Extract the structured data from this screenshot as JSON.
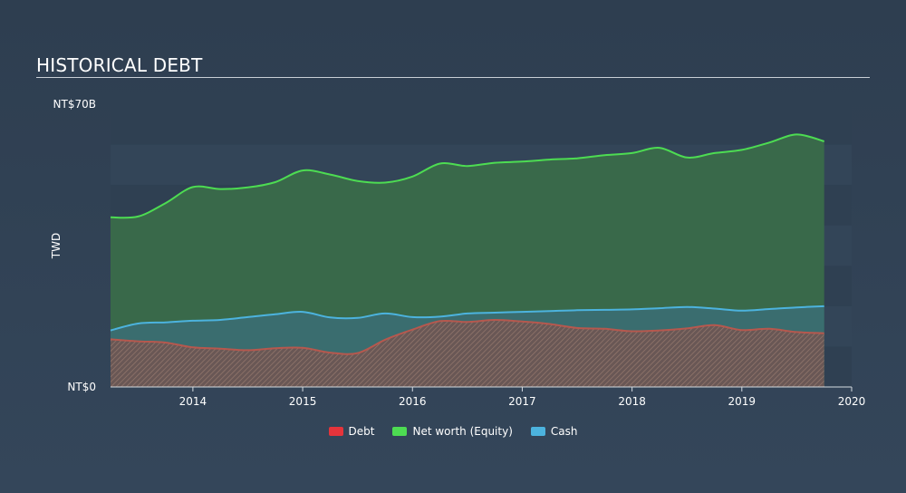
{
  "title": "HISTORICAL DEBT",
  "colors": {
    "debt": "#e5343b",
    "equity": "#4ddc52",
    "cash": "#4cb3de",
    "equity_fill": "#3a6b4a",
    "cash_fill": "#3b6e76"
  },
  "legend": [
    {
      "key": "debt",
      "label": "Debt",
      "color": "#e5343b"
    },
    {
      "key": "equity",
      "label": "Net worth (Equity)",
      "color": "#4ddc52"
    },
    {
      "key": "cash",
      "label": "Cash",
      "color": "#4cb3de"
    }
  ],
  "chart_data": {
    "type": "area",
    "title": "HISTORICAL DEBT",
    "ylabel": "TWD",
    "xlabel": "",
    "ylim": [
      0,
      70
    ],
    "xlim": [
      2013.25,
      2020.0
    ],
    "y_tick_labels": [
      {
        "value": 70,
        "label": "NT$70B"
      },
      {
        "value": 0,
        "label": "NT$0"
      }
    ],
    "x_ticks": [
      2014,
      2015,
      2016,
      2017,
      2018,
      2019,
      2020
    ],
    "grid": true,
    "legend_position": "bottom-center",
    "series": [
      {
        "name": "Net worth (Equity)",
        "key": "equity",
        "x": [
          2013.25,
          2013.5,
          2013.75,
          2014.0,
          2014.25,
          2014.5,
          2014.75,
          2015.0,
          2015.25,
          2015.5,
          2015.75,
          2016.0,
          2016.25,
          2016.5,
          2016.75,
          2017.0,
          2017.25,
          2017.5,
          2017.75,
          2018.0,
          2018.25,
          2018.5,
          2018.75,
          2019.0,
          2019.25,
          2019.5,
          2019.75
        ],
        "values": [
          42.0,
          42.2,
          45.5,
          49.5,
          49.0,
          49.4,
          50.7,
          53.6,
          52.6,
          51.0,
          50.6,
          52.1,
          55.3,
          54.7,
          55.5,
          55.8,
          56.3,
          56.6,
          57.4,
          57.9,
          59.2,
          56.8,
          57.9,
          58.7,
          60.5,
          62.5,
          60.8
        ]
      },
      {
        "name": "Cash",
        "key": "cash",
        "x": [
          2013.25,
          2013.5,
          2013.75,
          2014.0,
          2014.25,
          2014.5,
          2014.75,
          2015.0,
          2015.25,
          2015.5,
          2015.75,
          2016.0,
          2016.25,
          2016.5,
          2016.75,
          2017.0,
          2017.25,
          2017.5,
          2017.75,
          2018.0,
          2018.25,
          2018.5,
          2018.75,
          2019.0,
          2019.25,
          2019.5,
          2019.75
        ],
        "values": [
          14.0,
          15.7,
          16.0,
          16.4,
          16.6,
          17.3,
          18.0,
          18.6,
          17.2,
          17.1,
          18.2,
          17.3,
          17.4,
          18.2,
          18.4,
          18.6,
          18.8,
          19.0,
          19.1,
          19.2,
          19.5,
          19.8,
          19.4,
          18.9,
          19.3,
          19.7,
          20.0
        ]
      },
      {
        "name": "Debt",
        "key": "debt",
        "x": [
          2013.25,
          2013.5,
          2013.75,
          2014.0,
          2014.25,
          2014.5,
          2014.75,
          2015.0,
          2015.25,
          2015.5,
          2015.75,
          2016.0,
          2016.25,
          2016.5,
          2016.75,
          2017.0,
          2017.25,
          2017.5,
          2017.75,
          2018.0,
          2018.25,
          2018.5,
          2018.75,
          2019.0,
          2019.25,
          2019.5,
          2019.75
        ],
        "values": [
          11.8,
          11.3,
          11.0,
          9.8,
          9.5,
          9.1,
          9.6,
          9.7,
          8.5,
          8.4,
          11.7,
          14.2,
          16.3,
          16.1,
          16.6,
          16.2,
          15.6,
          14.6,
          14.4,
          13.8,
          14.0,
          14.5,
          15.3,
          14.1,
          14.4,
          13.6,
          13.3
        ]
      }
    ]
  }
}
